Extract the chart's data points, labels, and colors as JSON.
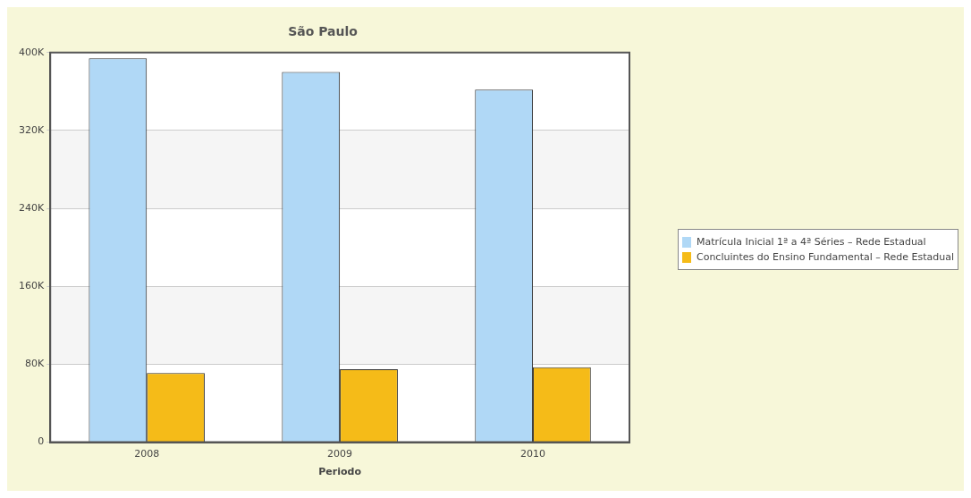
{
  "chart_data": {
    "type": "bar",
    "title": "São Paulo",
    "xlabel": "Periodo",
    "categories": [
      "2008",
      "2009",
      "2010"
    ],
    "series": [
      {
        "name": "Matrícula Inicial 1ª a 4ª Séries – Rede Estadual",
        "color": "#b0d8f6",
        "values": [
          394000,
          380000,
          362000
        ]
      },
      {
        "name": "Concluintes do Ensino Fundamental – Rede Estadual",
        "color": "#f5bb18",
        "values": [
          71000,
          75000,
          77000
        ]
      }
    ],
    "ylim": [
      0,
      400000
    ],
    "yticks": [
      {
        "value": 0,
        "label": "0"
      },
      {
        "value": 80000,
        "label": "80K"
      },
      {
        "value": 160000,
        "label": "160K"
      },
      {
        "value": 240000,
        "label": "240K"
      },
      {
        "value": 320000,
        "label": "320K"
      },
      {
        "value": 400000,
        "label": "400K"
      }
    ],
    "grid": "y",
    "legend": "right"
  }
}
